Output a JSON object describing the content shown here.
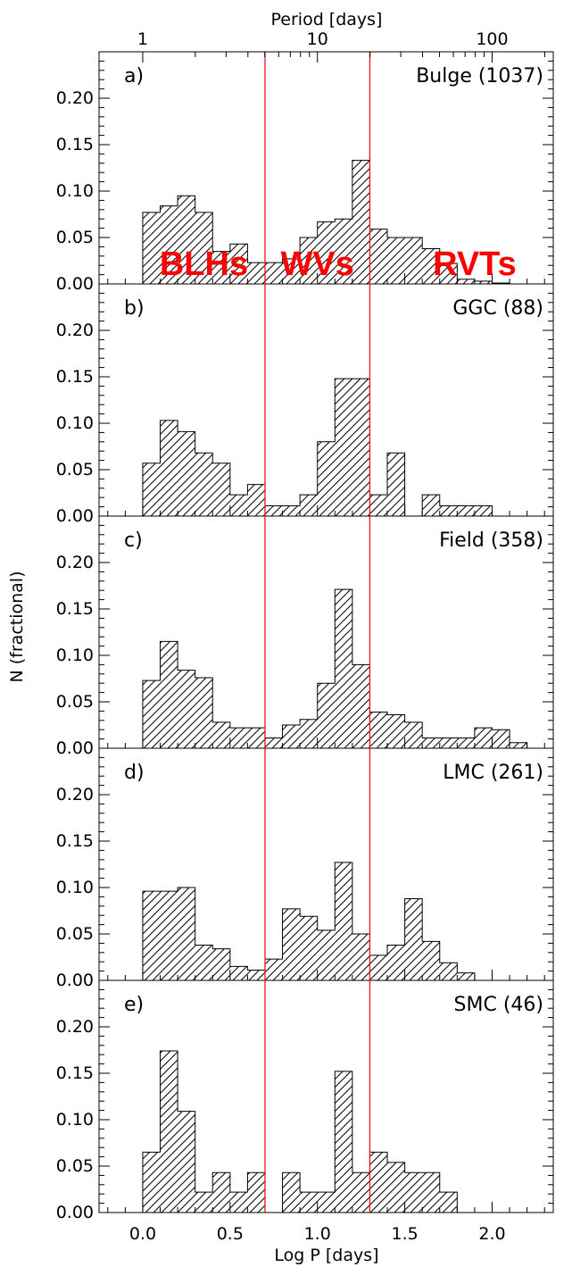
{
  "chart_data": {
    "type": "bar",
    "histogram": true,
    "hatch": "diagonal",
    "bin_width": 0.1,
    "xlabel": "Log P [days]",
    "x2label": "Period [days]",
    "ylabel": "N (fractional)",
    "xlim": [
      -0.25,
      2.35
    ],
    "ylim": [
      0,
      0.25
    ],
    "x_ticks": [
      "0.0",
      "0.5",
      "1.0",
      "1.5",
      "2.0"
    ],
    "x2_ticks": [
      "1",
      "10",
      "100"
    ],
    "y_ticks": [
      "0.00",
      "0.05",
      "0.10",
      "0.15",
      "0.20"
    ],
    "log_scale_top": true,
    "divider_color": "#e8161b",
    "region_color": "#ff0000",
    "dividers": [
      0.7,
      1.3
    ],
    "regions": [
      {
        "text": "BLHs",
        "x": 0.35
      },
      {
        "text": "WVs",
        "x": 1.0
      },
      {
        "text": "RVTs",
        "x": 1.9
      }
    ],
    "series": [
      {
        "panel": "a)",
        "name": "Bulge (1037)",
        "values": [
          0.077,
          0.084,
          0.095,
          0.077,
          0.035,
          0.043,
          0.023,
          0.023,
          0.027,
          0.05,
          0.067,
          0.07,
          0.133,
          0.059,
          0.05,
          0.05,
          0.038,
          0.022,
          0.005,
          0.003,
          0.001,
          0.0
        ]
      },
      {
        "panel": "b)",
        "name": "GGC (88)",
        "values": [
          0.057,
          0.103,
          0.091,
          0.068,
          0.057,
          0.023,
          0.034,
          0.011,
          0.011,
          0.023,
          0.08,
          0.148,
          0.148,
          0.023,
          0.068,
          0.0,
          0.023,
          0.011,
          0.011,
          0.011,
          0.0,
          0.0
        ]
      },
      {
        "panel": "c)",
        "name": "Field (358)",
        "values": [
          0.073,
          0.115,
          0.084,
          0.076,
          0.028,
          0.022,
          0.022,
          0.011,
          0.025,
          0.031,
          0.07,
          0.171,
          0.09,
          0.039,
          0.036,
          0.028,
          0.011,
          0.011,
          0.011,
          0.022,
          0.02,
          0.006
        ]
      },
      {
        "panel": "d)",
        "name": "LMC (261)",
        "values": [
          0.096,
          0.096,
          0.1,
          0.038,
          0.034,
          0.015,
          0.011,
          0.023,
          0.077,
          0.069,
          0.054,
          0.127,
          0.05,
          0.027,
          0.038,
          0.088,
          0.042,
          0.019,
          0.008,
          0.0,
          0.0,
          0.0
        ]
      },
      {
        "panel": "e)",
        "name": "SMC (46)",
        "values": [
          0.065,
          0.174,
          0.109,
          0.022,
          0.043,
          0.022,
          0.043,
          0.0,
          0.043,
          0.022,
          0.022,
          0.152,
          0.043,
          0.065,
          0.054,
          0.043,
          0.043,
          0.022,
          0.0,
          0.0,
          0.0,
          0.0
        ]
      }
    ]
  }
}
